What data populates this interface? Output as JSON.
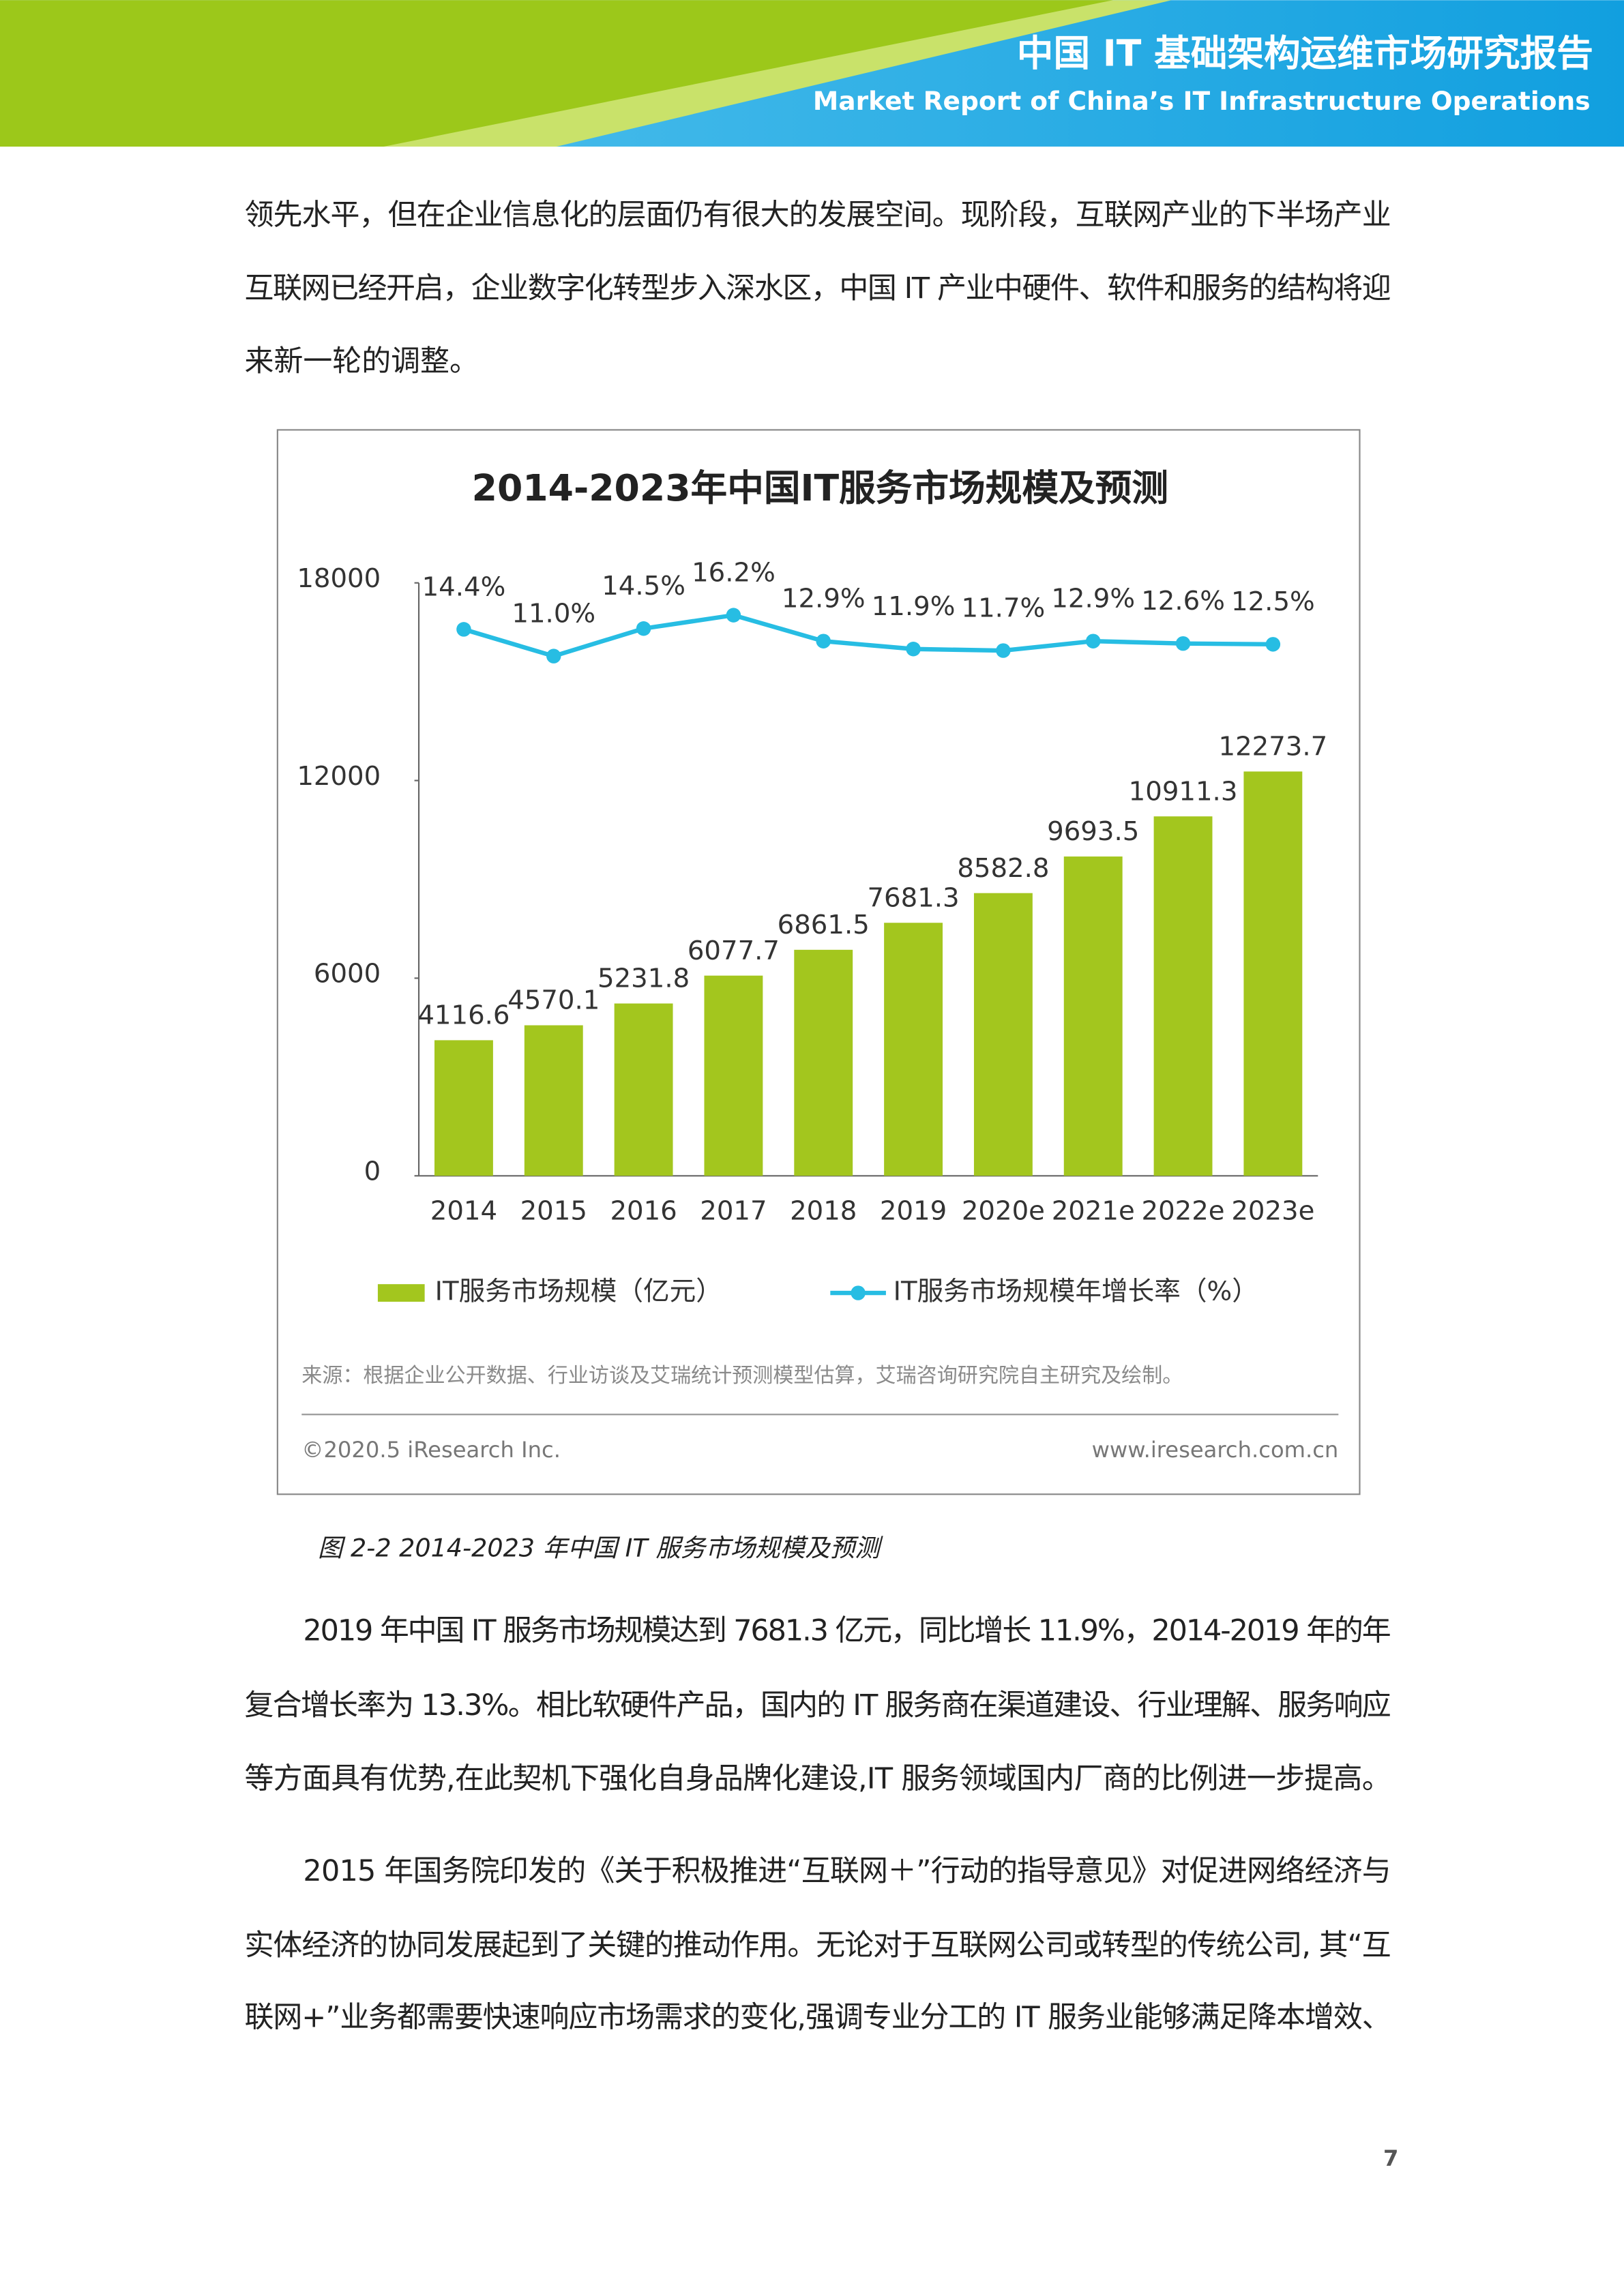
{
  "header": {
    "title": "中国 IT 基础架构运维市场研究报告",
    "subtitle": "Market Report of China’s IT Infrastructure Operations"
  },
  "paragraphs": [
    [
      "领先水平，但在企业信息化的层面仍有很大的发展空间。现阶段，互联网产业的下半场产业",
      "互联网已经开启，企业数字化转型步入深水区，中国 IT 产业中硬件、软件和服务的结构将迎",
      "来新一轮的调整。"
    ],
    [
      "2019 年中国 IT 服务市场规模达到 7681.3 亿元，同比增长 11.9%，2014-2019 年的年",
      "复合增长率为 13.3%。相比软硬件产品，国内的 IT 服务商在渠道建设、行业理解、服务响应",
      "等方面具有优势,在此契机下强化自身品牌化建设,IT 服务领域国内厂商的比例进一步提高。"
    ],
    [
      "2015 年国务院印发的《关于积极推进“互联网＋”行动的指导意见》对促进网络经济与",
      "实体经济的协同发展起到了关键的推动作用。无论对于互联网公司或转型的传统公司, 其“互",
      "联网+”业务都需要快速响应市场需求的变化,强调专业分工的 IT 服务业能够满足降本增效、"
    ]
  ],
  "chart_data": {
    "type": "combo",
    "title": "2014-2023年中国IT服务市场规模及预测",
    "categories": [
      "2014",
      "2015",
      "2016",
      "2017",
      "2018",
      "2019",
      "2020e",
      "2021e",
      "2022e",
      "2023e"
    ],
    "series": [
      {
        "name": "IT服务市场规模（亿元）",
        "type": "bar",
        "color": "#a3c61e",
        "values": [
          4116.6,
          4570.1,
          5231.8,
          6077.7,
          6861.5,
          7681.3,
          8582.8,
          9693.5,
          10911.3,
          12273.7
        ]
      },
      {
        "name": "IT服务市场规模年增长率（%）",
        "type": "line",
        "axis": "y2",
        "color": "#27bde3",
        "values": [
          14.4,
          11.0,
          14.5,
          16.2,
          12.9,
          11.9,
          11.7,
          12.9,
          12.6,
          12.5
        ],
        "value_labels": [
          "14.4%",
          "11.0%",
          "14.5%",
          "16.2%",
          "12.9%",
          "11.9%",
          "11.7%",
          "12.9%",
          "12.6%",
          "12.5%"
        ]
      }
    ],
    "ylim": [
      0,
      18000
    ],
    "yticks": [
      0,
      6000,
      12000,
      18000
    ],
    "y2lim": [
      -55,
      20.3
    ],
    "source": "来源：根据企业公开数据、行业访谈及艾瑞统计预测模型估算，艾瑞咨询研究院自主研究及绘制。",
    "copyright": "©2020.5 iResearch Inc.",
    "website": "www.iresearch.com.cn"
  },
  "caption": "图 2-2 2014-2023 年中国 IT 服务市场规模及预测",
  "page_number": "7"
}
